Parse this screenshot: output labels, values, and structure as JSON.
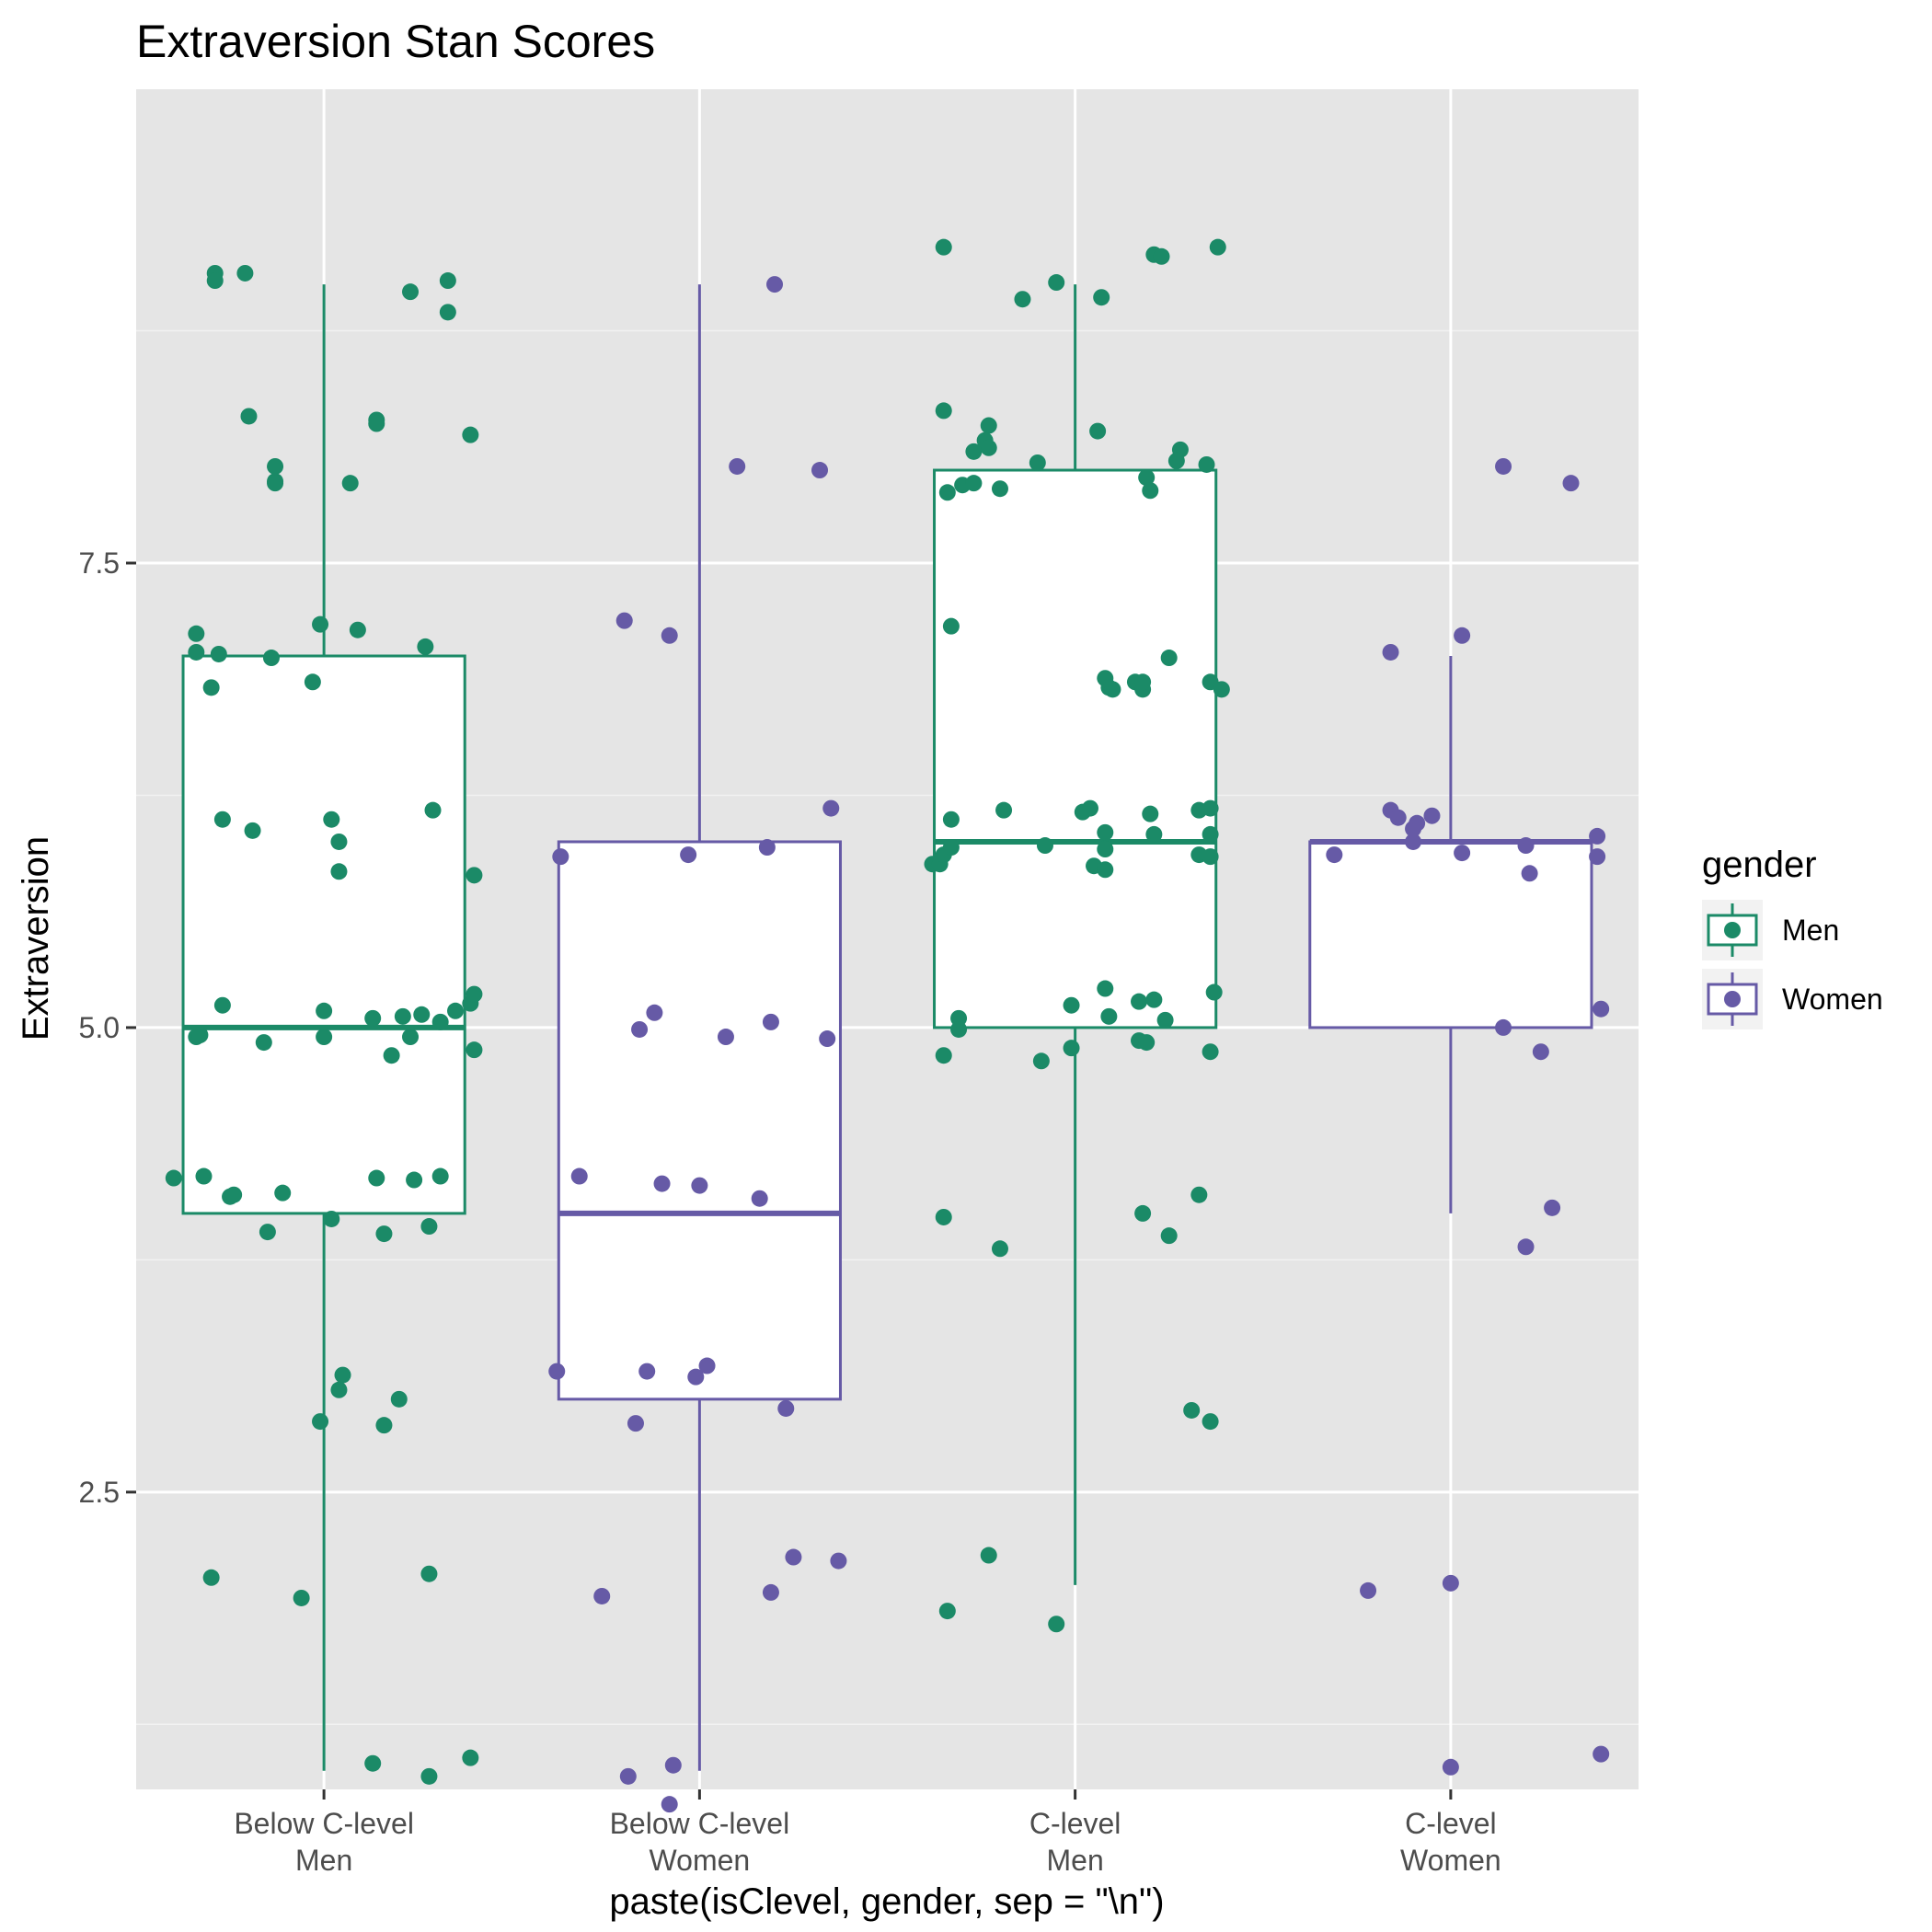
{
  "chart_data": {
    "type": "box",
    "title": "Extraversion Stan Scores",
    "xlabel": "paste(isClevel, gender, sep = \"\\n\")",
    "ylabel": "Extraversion",
    "ylim": [
      0.9,
      10.05
    ],
    "yticks": [
      2.5,
      5.0,
      7.5
    ],
    "ytick_labels": [
      "2.5",
      "5.0",
      "7.5"
    ],
    "grid": true,
    "legend": {
      "title": "gender",
      "position": "right",
      "entries": [
        {
          "name": "Men",
          "color": "#1b8a67"
        },
        {
          "name": "Women",
          "color": "#665aa6"
        }
      ]
    },
    "categories": [
      {
        "label": [
          "Below C-level",
          "Men"
        ],
        "gender": "Men"
      },
      {
        "label": [
          "Below C-level",
          "Women"
        ],
        "gender": "Women"
      },
      {
        "label": [
          "C-level",
          "Men"
        ],
        "gender": "Men"
      },
      {
        "label": [
          "C-level",
          "Women"
        ],
        "gender": "Women"
      }
    ],
    "boxes": [
      {
        "whisker_low": 1,
        "q1": 4,
        "median": 5,
        "q3": 7,
        "whisker_high": 9
      },
      {
        "whisker_low": 1,
        "q1": 3,
        "median": 4,
        "q3": 6,
        "whisker_high": 9
      },
      {
        "whisker_low": 2,
        "q1": 5,
        "median": 6,
        "q3": 8,
        "whisker_high": 9
      },
      {
        "whisker_low": 4,
        "q1": 5,
        "median": 6,
        "q3": 6,
        "whisker_high": 7
      }
    ],
    "points": [
      [
        [
          -0.29,
          9.06
        ],
        [
          -0.29,
          9.02
        ],
        [
          -0.21,
          9.06
        ],
        [
          0.23,
          8.96
        ],
        [
          0.33,
          9.02
        ],
        [
          0.33,
          8.85
        ],
        [
          -0.2,
          8.29
        ],
        [
          0.14,
          8.27
        ],
        [
          0.14,
          8.25
        ],
        [
          0.39,
          8.19
        ],
        [
          -0.13,
          8.02
        ],
        [
          -0.13,
          7.94
        ],
        [
          -0.13,
          7.93
        ],
        [
          0.07,
          7.93
        ],
        [
          -0.34,
          7.12
        ],
        [
          -0.34,
          7.02
        ],
        [
          -0.28,
          7.01
        ],
        [
          -0.14,
          6.99
        ],
        [
          -0.01,
          7.17
        ],
        [
          0.09,
          7.14
        ],
        [
          0.27,
          7.05
        ],
        [
          -0.3,
          6.83
        ],
        [
          -0.03,
          6.86
        ],
        [
          -0.27,
          6.12
        ],
        [
          -0.19,
          6.06
        ],
        [
          0.02,
          6.12
        ],
        [
          0.04,
          6.0
        ],
        [
          0.29,
          6.17
        ],
        [
          0.04,
          5.84
        ],
        [
          0.4,
          5.82
        ],
        [
          -0.27,
          5.12
        ],
        [
          0.0,
          5.09
        ],
        [
          0.13,
          5.05
        ],
        [
          0.21,
          5.06
        ],
        [
          0.26,
          5.07
        ],
        [
          0.31,
          5.03
        ],
        [
          0.35,
          5.09
        ],
        [
          0.39,
          5.13
        ],
        [
          0.4,
          5.18
        ],
        [
          -0.34,
          4.95
        ],
        [
          -0.33,
          4.96
        ],
        [
          -0.16,
          4.92
        ],
        [
          0.0,
          4.95
        ],
        [
          0.18,
          4.85
        ],
        [
          0.23,
          4.95
        ],
        [
          0.4,
          4.88
        ],
        [
          -0.4,
          4.19
        ],
        [
          -0.32,
          4.2
        ],
        [
          -0.25,
          4.09
        ],
        [
          -0.24,
          4.1
        ],
        [
          -0.11,
          4.11
        ],
        [
          0.14,
          4.19
        ],
        [
          0.24,
          4.18
        ],
        [
          0.31,
          4.2
        ],
        [
          -0.15,
          3.9
        ],
        [
          0.02,
          3.97
        ],
        [
          0.16,
          3.89
        ],
        [
          0.28,
          3.93
        ],
        [
          0.04,
          3.05
        ],
        [
          0.05,
          3.13
        ],
        [
          0.2,
          3.0
        ],
        [
          -0.01,
          2.88
        ],
        [
          0.16,
          2.86
        ],
        [
          -0.3,
          2.04
        ],
        [
          0.28,
          2.06
        ],
        [
          -0.06,
          1.93
        ],
        [
          0.13,
          1.04
        ],
        [
          0.28,
          0.97
        ],
        [
          0.39,
          1.07
        ]
      ],
      [
        [
          0.2,
          9.0
        ],
        [
          0.1,
          8.02
        ],
        [
          0.32,
          8.0
        ],
        [
          -0.2,
          7.19
        ],
        [
          -0.08,
          7.11
        ],
        [
          0.35,
          6.18
        ],
        [
          -0.03,
          5.93
        ],
        [
          0.18,
          5.97
        ],
        [
          -0.37,
          5.92
        ],
        [
          -0.12,
          5.08
        ],
        [
          -0.16,
          4.99
        ],
        [
          0.07,
          4.95
        ],
        [
          0.19,
          5.03
        ],
        [
          0.34,
          4.94
        ],
        [
          -0.32,
          4.2
        ],
        [
          -0.1,
          4.16
        ],
        [
          0.0,
          4.15
        ],
        [
          0.16,
          4.08
        ],
        [
          0.02,
          3.18
        ],
        [
          -0.14,
          3.15
        ],
        [
          -0.01,
          3.12
        ],
        [
          -0.38,
          3.15
        ],
        [
          0.23,
          2.95
        ],
        [
          -0.17,
          2.87
        ],
        [
          0.25,
          2.15
        ],
        [
          0.37,
          2.13
        ],
        [
          0.19,
          1.96
        ],
        [
          -0.26,
          1.94
        ],
        [
          -0.07,
          1.03
        ],
        [
          -0.19,
          0.97
        ],
        [
          -0.08,
          0.82
        ]
      ],
      [
        [
          -0.35,
          9.2
        ],
        [
          0.21,
          9.16
        ],
        [
          0.23,
          9.15
        ],
        [
          0.38,
          9.2
        ],
        [
          -0.14,
          8.92
        ],
        [
          -0.05,
          9.01
        ],
        [
          0.07,
          8.93
        ],
        [
          -0.35,
          8.32
        ],
        [
          -0.23,
          8.24
        ],
        [
          -0.24,
          8.16
        ],
        [
          -0.23,
          8.12
        ],
        [
          -0.27,
          8.1
        ],
        [
          0.06,
          8.21
        ],
        [
          -0.1,
          8.04
        ],
        [
          0.28,
          8.11
        ],
        [
          0.27,
          8.05
        ],
        [
          0.35,
          8.03
        ],
        [
          -0.34,
          7.88
        ],
        [
          -0.3,
          7.92
        ],
        [
          -0.27,
          7.93
        ],
        [
          -0.2,
          7.9
        ],
        [
          0.19,
          7.96
        ],
        [
          0.2,
          7.89
        ],
        [
          -0.33,
          7.16
        ],
        [
          0.08,
          6.88
        ],
        [
          0.09,
          6.83
        ],
        [
          0.1,
          6.82
        ],
        [
          0.16,
          6.86
        ],
        [
          0.18,
          6.82
        ],
        [
          0.18,
          6.86
        ],
        [
          0.25,
          6.99
        ],
        [
          0.36,
          6.86
        ],
        [
          0.39,
          6.82
        ],
        [
          -0.19,
          6.17
        ],
        [
          -0.33,
          6.12
        ],
        [
          0.02,
          6.16
        ],
        [
          0.04,
          6.18
        ],
        [
          0.08,
          6.05
        ],
        [
          0.2,
          6.15
        ],
        [
          0.21,
          6.04
        ],
        [
          0.33,
          6.17
        ],
        [
          0.36,
          6.18
        ],
        [
          -0.38,
          5.88
        ],
        [
          -0.36,
          5.88
        ],
        [
          -0.35,
          5.93
        ],
        [
          -0.33,
          5.97
        ],
        [
          -0.08,
          5.98
        ],
        [
          0.08,
          5.96
        ],
        [
          0.05,
          5.87
        ],
        [
          0.08,
          5.85
        ],
        [
          0.33,
          5.93
        ],
        [
          0.36,
          5.92
        ],
        [
          0.36,
          6.04
        ],
        [
          0.08,
          5.21
        ],
        [
          -0.01,
          5.12
        ],
        [
          0.17,
          5.14
        ],
        [
          0.21,
          5.15
        ],
        [
          0.37,
          5.19
        ],
        [
          -0.31,
          5.05
        ],
        [
          -0.31,
          4.99
        ],
        [
          0.09,
          5.06
        ],
        [
          0.24,
          5.04
        ],
        [
          -0.35,
          4.85
        ],
        [
          -0.09,
          4.82
        ],
        [
          -0.01,
          4.89
        ],
        [
          0.17,
          4.93
        ],
        [
          0.19,
          4.92
        ],
        [
          0.36,
          4.87
        ],
        [
          -0.35,
          3.98
        ],
        [
          -0.2,
          3.81
        ],
        [
          0.18,
          4.0
        ],
        [
          0.25,
          3.88
        ],
        [
          0.33,
          4.1
        ],
        [
          0.31,
          2.94
        ],
        [
          0.36,
          2.88
        ],
        [
          -0.23,
          2.16
        ],
        [
          -0.34,
          1.86
        ],
        [
          -0.05,
          1.79
        ]
      ],
      [
        [
          0.14,
          8.02
        ],
        [
          0.32,
          7.93
        ],
        [
          -0.16,
          7.02
        ],
        [
          0.03,
          7.11
        ],
        [
          -0.16,
          6.17
        ],
        [
          -0.14,
          6.13
        ],
        [
          -0.1,
          6.07
        ],
        [
          -0.1,
          6.0
        ],
        [
          -0.09,
          6.1
        ],
        [
          -0.05,
          6.14
        ],
        [
          -0.31,
          5.93
        ],
        [
          0.03,
          5.94
        ],
        [
          0.2,
          5.98
        ],
        [
          0.21,
          5.83
        ],
        [
          0.39,
          6.03
        ],
        [
          0.39,
          5.92
        ],
        [
          0.4,
          5.1
        ],
        [
          0.14,
          5.0
        ],
        [
          0.24,
          4.87
        ],
        [
          0.27,
          4.03
        ],
        [
          0.2,
          3.82
        ],
        [
          -0.22,
          1.97
        ],
        [
          0.0,
          2.01
        ],
        [
          0.0,
          1.02
        ],
        [
          0.4,
          1.09
        ]
      ]
    ]
  }
}
